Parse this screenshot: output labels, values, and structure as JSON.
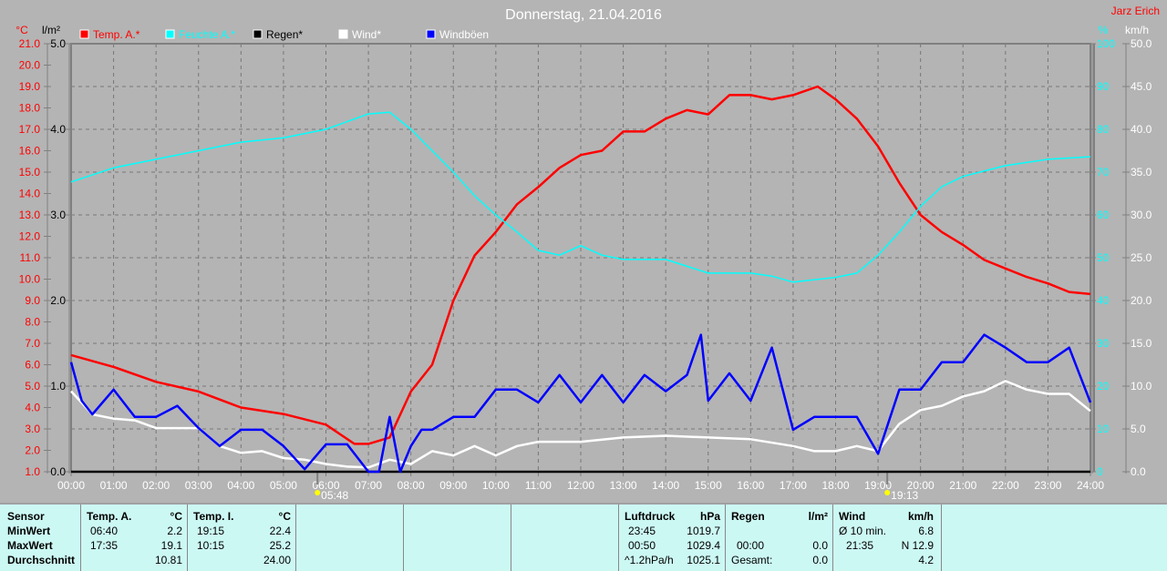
{
  "chart_data": {
    "type": "line",
    "title": "Donnerstag, 21.04.2016",
    "author": "Jarz Erich",
    "x_ticks": [
      "00:00",
      "01:00",
      "02:00",
      "03:00",
      "04:00",
      "05:00",
      "06:00",
      "07:00",
      "08:00",
      "09:00",
      "10:00",
      "11:00",
      "12:00",
      "13:00",
      "14:00",
      "15:00",
      "16:00",
      "17:00",
      "18:00",
      "19:00",
      "20:00",
      "21:00",
      "22:00",
      "23:00",
      "24:00"
    ],
    "axes": {
      "temp": {
        "unit": "°C",
        "range": [
          1,
          21
        ],
        "ticks": [
          "21.0",
          "20.0",
          "19.0",
          "18.0",
          "17.0",
          "16.0",
          "15.0",
          "14.0",
          "13.0",
          "12.0",
          "11.0",
          "10.0",
          "9.0",
          "8.0",
          "7.0",
          "6.0",
          "5.0",
          "4.0",
          "3.0",
          "2.0",
          "1.0"
        ],
        "color": "#ff0000"
      },
      "rain": {
        "unit": "l/m²",
        "range": [
          0,
          5
        ],
        "ticks": [
          "5.0",
          "4.0",
          "3.0",
          "2.0",
          "1.0",
          "0.0"
        ],
        "color": "#000000"
      },
      "humidity": {
        "unit": "%",
        "range": [
          0,
          100
        ],
        "ticks": [
          "100",
          "90",
          "80",
          "70",
          "60",
          "50",
          "40",
          "30",
          "20",
          "10",
          "0"
        ],
        "color": "#00ffff"
      },
      "wind": {
        "unit": "km/h",
        "range": [
          0,
          50
        ],
        "ticks": [
          "50.0",
          "45.0",
          "40.0",
          "35.0",
          "30.0",
          "25.0",
          "20.0",
          "15.0",
          "10.0",
          "5.0",
          "0.0"
        ],
        "color": "#ffffff"
      }
    },
    "legend": [
      {
        "label": "Temp. A.*",
        "color": "#ff0000"
      },
      {
        "label": "Feuchte A.*",
        "color": "#00ffff"
      },
      {
        "label": "Regen*",
        "color": "#000000"
      },
      {
        "label": "Wind*",
        "color": "#ffffff"
      },
      {
        "label": "Windböen",
        "color": "#0000ff"
      }
    ],
    "sun": {
      "sunrise": "05:48",
      "sunset": "19:13"
    },
    "series": [
      {
        "name": "Temp. A.",
        "axis": "temp",
        "color": "#ff0000",
        "x": [
          0,
          1,
          2,
          3,
          4,
          5,
          6,
          6.67,
          7,
          7.5,
          8,
          8.5,
          9,
          9.5,
          10,
          10.5,
          11,
          11.5,
          12,
          12.5,
          13,
          13.5,
          14,
          14.5,
          15,
          15.5,
          16,
          16.5,
          17,
          17.58,
          18,
          18.5,
          19,
          19.5,
          20,
          20.5,
          21,
          21.5,
          22,
          22.5,
          23,
          23.5,
          24
        ],
        "y": [
          6.45,
          5.9,
          5.2,
          4.75,
          4.0,
          3.7,
          3.2,
          2.3,
          2.3,
          2.6,
          4.75,
          6.0,
          9.0,
          11.1,
          12.2,
          13.5,
          14.3,
          15.2,
          15.8,
          16.0,
          16.9,
          16.9,
          17.5,
          17.9,
          17.7,
          18.6,
          18.6,
          18.4,
          18.6,
          19.0,
          18.4,
          17.5,
          16.2,
          14.5,
          13.0,
          12.2,
          11.6,
          10.9,
          10.5,
          10.1,
          9.8,
          9.4,
          9.3
        ]
      },
      {
        "name": "Feuchte A.",
        "axis": "humidity",
        "color": "#00ffff",
        "x": [
          0,
          1,
          2,
          3,
          4,
          5,
          6,
          7,
          7.5,
          8,
          8.5,
          9,
          9.5,
          10,
          10.5,
          11,
          11.5,
          12,
          12.5,
          13,
          14,
          14.5,
          15,
          16,
          16.5,
          17,
          18,
          18.5,
          19,
          19.5,
          20,
          20.5,
          21,
          22,
          23,
          24
        ],
        "y": [
          67.7,
          71,
          73,
          75,
          77,
          78,
          80,
          83.6,
          84,
          80,
          75,
          70,
          64.5,
          60,
          56,
          51.7,
          50.6,
          52.8,
          50.6,
          49.6,
          49.6,
          48,
          46.4,
          46.4,
          45.7,
          44.3,
          45.4,
          46.4,
          50.6,
          56,
          62,
          66.6,
          69,
          71.5,
          73,
          73.6
        ]
      },
      {
        "name": "Regen",
        "axis": "rain",
        "color": "#000000",
        "x": [
          0,
          24
        ],
        "y": [
          0,
          0
        ]
      },
      {
        "name": "Wind",
        "axis": "wind",
        "color": "#ffffff",
        "x": [
          0,
          0.5,
          1,
          1.5,
          2,
          3,
          3.5,
          4,
          4.5,
          5,
          5.5,
          6,
          6.5,
          7,
          7.5,
          8,
          8.5,
          9,
          9.5,
          10,
          10.5,
          11,
          12,
          13,
          14,
          15,
          16,
          17,
          17.5,
          18,
          18.5,
          19,
          19.25,
          19.5,
          20,
          20.5,
          21,
          21.5,
          22,
          22.5,
          23,
          23.5,
          24
        ],
        "y": [
          9.4,
          6.7,
          6.2,
          6.0,
          5.1,
          5.1,
          3.0,
          2.2,
          2.4,
          1.6,
          1.4,
          0.9,
          0.6,
          0.5,
          1.4,
          0.9,
          2.4,
          1.9,
          3.0,
          1.9,
          3.0,
          3.5,
          3.5,
          4.0,
          4.2,
          4.0,
          3.8,
          3.0,
          2.4,
          2.4,
          3.0,
          2.4,
          4.0,
          5.6,
          7.2,
          7.7,
          8.8,
          9.4,
          10.6,
          9.6,
          9.1,
          9.1,
          7.1
        ]
      },
      {
        "name": "Windböen",
        "axis": "wind",
        "color": "#0000ff",
        "x": [
          0,
          0.25,
          0.5,
          1,
          1.5,
          2,
          2.5,
          3,
          3.5,
          4,
          4.5,
          5,
          5.5,
          6,
          6.5,
          7,
          7.25,
          7.5,
          7.75,
          8,
          8.25,
          8.5,
          9,
          9.5,
          10,
          10.5,
          11,
          11.5,
          12,
          12.5,
          13,
          13.5,
          14,
          14.5,
          14.83,
          15,
          15.5,
          16,
          16.5,
          17,
          17.5,
          18,
          18.5,
          19,
          19.5,
          20,
          20.5,
          21,
          21.5,
          22,
          22.5,
          23,
          23.5,
          24
        ],
        "y": [
          12.8,
          8.3,
          6.7,
          9.6,
          6.4,
          6.4,
          7.7,
          5.1,
          3.0,
          4.9,
          4.9,
          3.0,
          0.3,
          3.2,
          3.2,
          0,
          0,
          6.4,
          0,
          3.0,
          4.9,
          4.9,
          6.4,
          6.4,
          9.6,
          9.6,
          8.1,
          11.3,
          8.1,
          11.3,
          8.1,
          11.3,
          9.4,
          11.3,
          16.0,
          8.3,
          11.5,
          8.3,
          14.5,
          4.9,
          6.4,
          6.4,
          6.4,
          2.1,
          9.6,
          9.6,
          12.8,
          12.8,
          16.0,
          14.5,
          12.8,
          12.8,
          14.5,
          8.1
        ]
      }
    ]
  },
  "table": {
    "temp_a": {
      "sensor": "Sensor",
      "min": "MinWert",
      "max": "MaxWert",
      "avg": "Durchschnitt",
      "title": "Temp. A.",
      "unit": "°C",
      "min_time": "06:40",
      "min_val": "2.2",
      "max_time": "17:35",
      "max_val": "19.1",
      "avg_val": "10.81"
    },
    "temp_i": {
      "title": "Temp. I.",
      "unit": "°C",
      "min_time": "19:15",
      "min_val": "22.4",
      "max_time": "10:15",
      "max_val": "25.2",
      "avg_val": "24.00"
    },
    "pressure": {
      "title": "Luftdruck",
      "unit": "hPa",
      "r1_time": "23:45",
      "r1_val": "1019.7",
      "r2_time": "00:50",
      "r2_val": "1029.4",
      "r3_label": "^1.2hPa/h",
      "r3_val": "1025.1"
    },
    "rain": {
      "title": "Regen",
      "unit": "l/m²",
      "r2_time": "00:00",
      "r2_val": "0.0",
      "r3_label": "Gesamt:",
      "r3_val": "0.0"
    },
    "wind": {
      "title": "Wind",
      "unit": "km/h",
      "r1_label": "Ø 10 min.",
      "r1_val": "6.8",
      "r2_time": "21:35",
      "r2_val": "N 12.9",
      "r3_val": "4.2"
    }
  }
}
